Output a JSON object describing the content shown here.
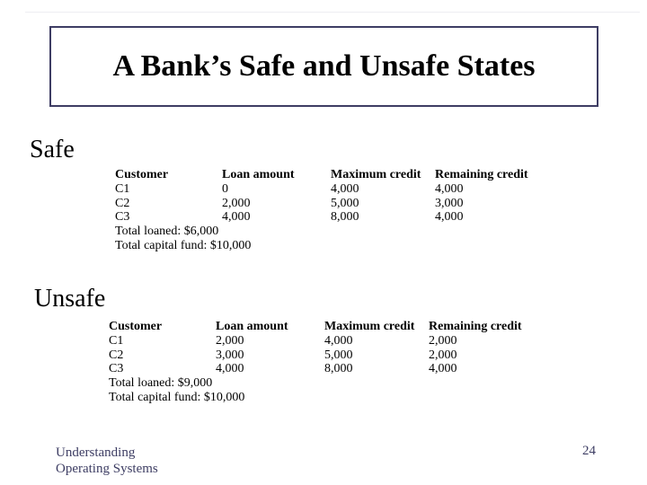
{
  "slide": {
    "title": "A Bank’s Safe and Unsafe States",
    "footer_line1": "Understanding",
    "footer_line2": "Operating Systems",
    "page_number": "24"
  },
  "colors": {
    "background": "#ffffff",
    "title_box_border": "#3e3d64",
    "body_text": "#000000",
    "footer_text": "#3d3d63"
  },
  "sections": [
    {
      "label": "Safe",
      "table": {
        "headers": [
          "Customer",
          "Loan amount",
          "Maximum credit",
          "Remaining credit"
        ],
        "rows": [
          [
            "C1",
            "0",
            "4,000",
            "4,000"
          ],
          [
            "C2",
            "2,000",
            "5,000",
            "3,000"
          ],
          [
            "C3",
            "4,000",
            "8,000",
            "4,000"
          ]
        ],
        "total_loaned": "Total loaned: $6,000",
        "total_capital": "Total capital fund: $10,000"
      }
    },
    {
      "label": "Unsafe",
      "table": {
        "headers": [
          "Customer",
          "Loan amount",
          "Maximum credit",
          "Remaining credit"
        ],
        "rows": [
          [
            "C1",
            "2,000",
            "4,000",
            "2,000"
          ],
          [
            "C2",
            "3,000",
            "5,000",
            "2,000"
          ],
          [
            "C3",
            "4,000",
            "8,000",
            "4,000"
          ]
        ],
        "total_loaned": "Total loaned: $9,000",
        "total_capital": "Total capital fund: $10,000"
      }
    }
  ]
}
